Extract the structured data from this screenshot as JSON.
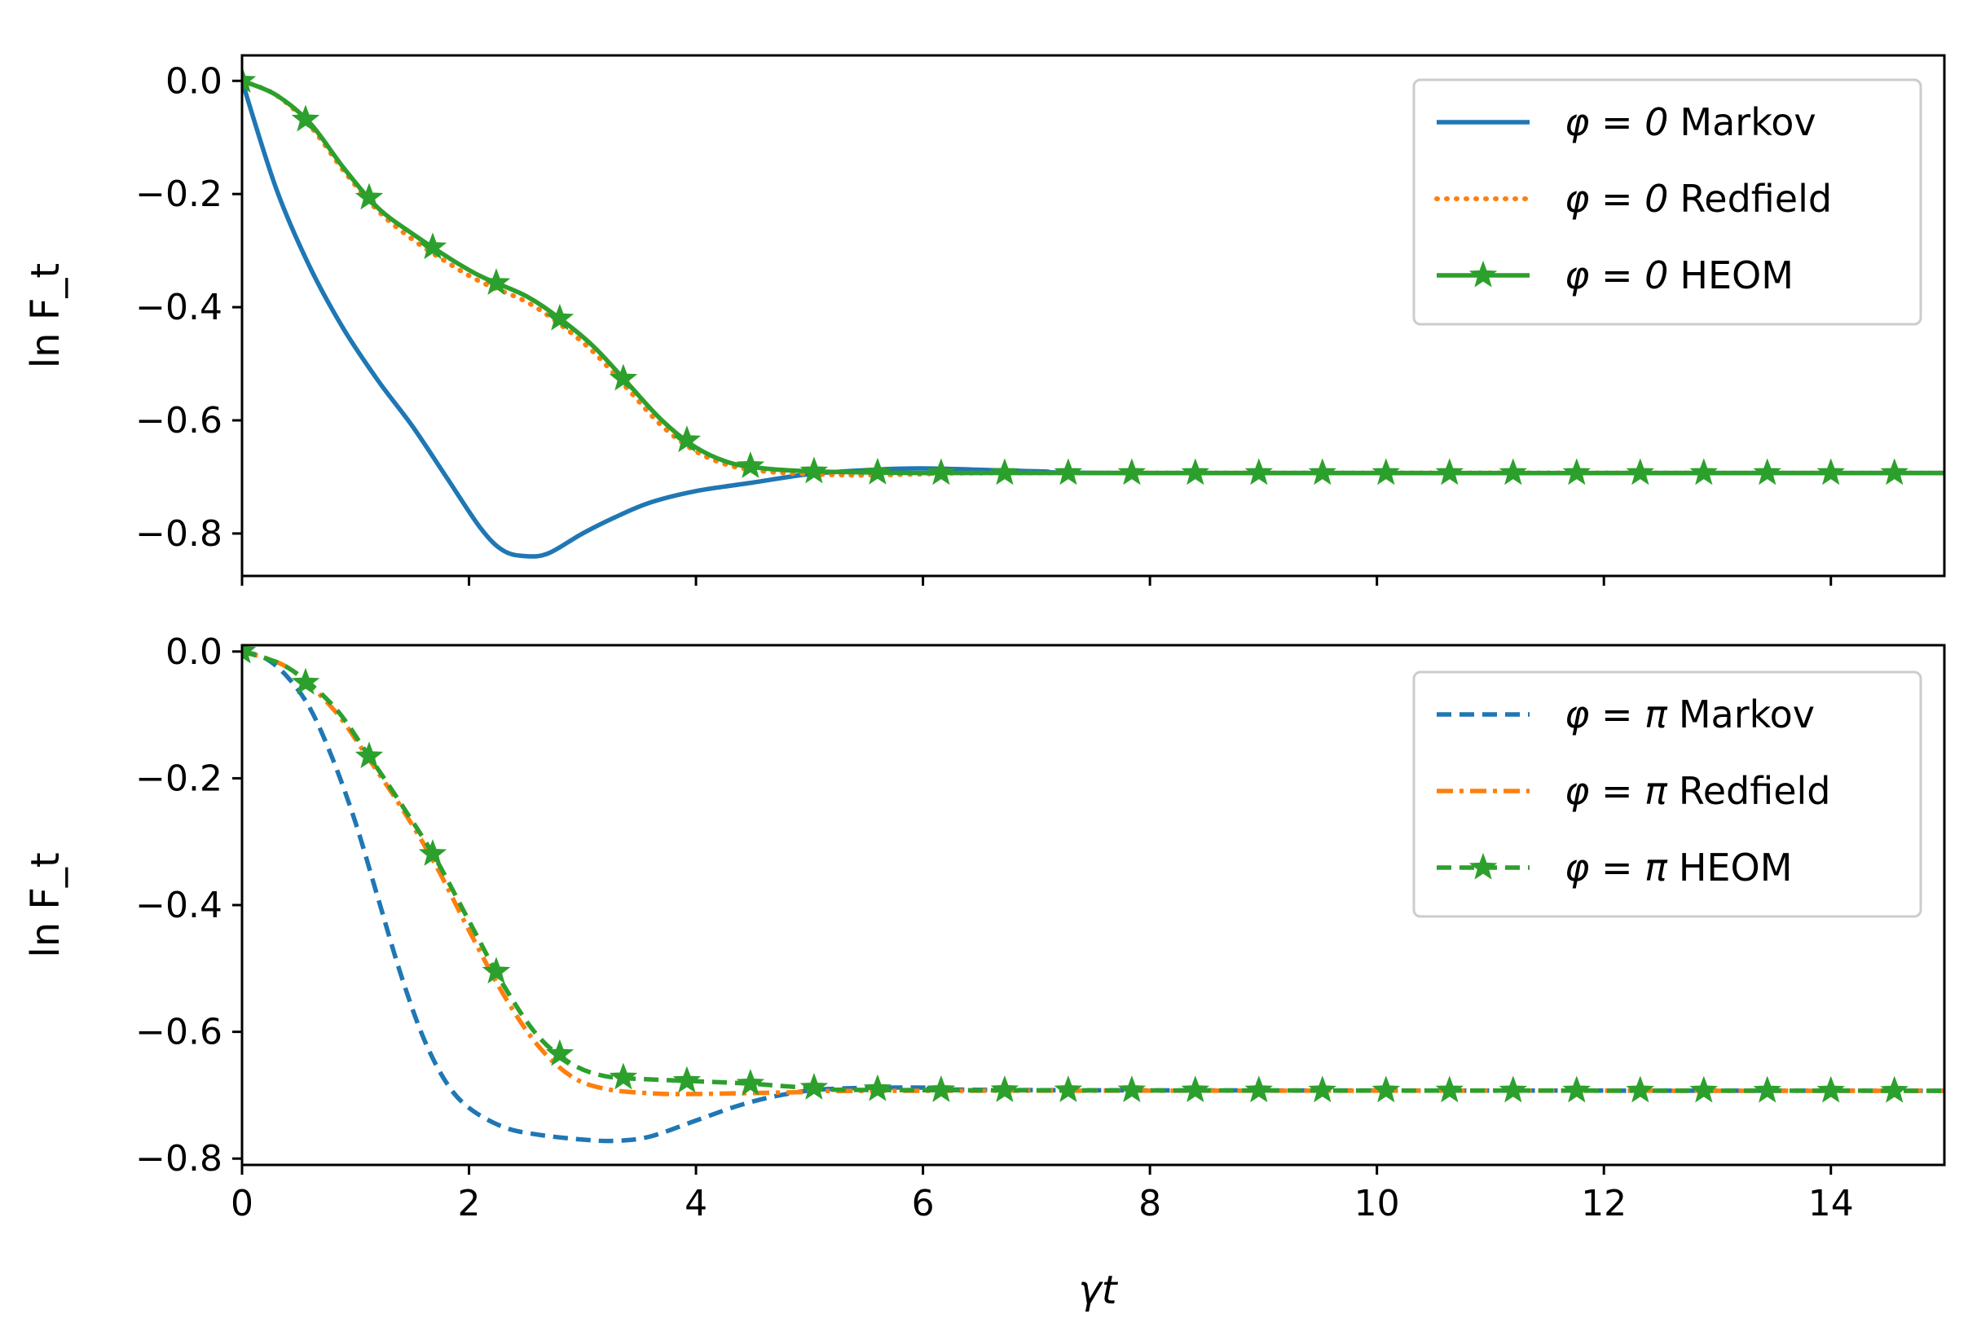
{
  "figure": {
    "xlabel": "γt",
    "colors": {
      "blue": "#1f77b4",
      "orange": "#ff7f0e",
      "green": "#2ca02c",
      "legend_edge": "#cccccc"
    }
  },
  "chart_data": [
    {
      "type": "line",
      "ylabel": "ln F_t",
      "xlim": [
        0,
        15
      ],
      "ylim": [
        -0.875,
        0.045
      ],
      "yticks": [
        0.0,
        -0.2,
        -0.4,
        -0.6,
        -0.8
      ],
      "ytick_labels": [
        "0.0",
        "−0.2",
        "−0.4",
        "−0.6",
        "−0.8"
      ],
      "xticks": [
        0,
        2,
        4,
        6,
        8,
        10,
        12,
        14
      ],
      "xtick_labels_shown": false,
      "grid": false,
      "legend_position": "upper-right",
      "series": [
        {
          "name": "φ = 0 Markov",
          "label_prefix": "φ = 0",
          "label_suffix": "Markov",
          "color": "#1f77b4",
          "style": "solid",
          "marker": "none",
          "x": [
            0,
            0.3,
            0.6,
            0.9,
            1.2,
            1.5,
            1.8,
            2.1,
            2.3,
            2.5,
            2.7,
            3.0,
            3.3,
            3.6,
            4.0,
            4.5,
            5.0,
            5.5,
            6.0,
            7.0,
            8.0,
            15.0
          ],
          "y": [
            0,
            -0.19,
            -0.33,
            -0.44,
            -0.53,
            -0.61,
            -0.7,
            -0.79,
            -0.83,
            -0.84,
            -0.835,
            -0.8,
            -0.77,
            -0.745,
            -0.725,
            -0.71,
            -0.695,
            -0.688,
            -0.685,
            -0.69,
            -0.693,
            -0.693
          ]
        },
        {
          "name": "φ = 0 Redfield",
          "label_prefix": "φ = 0",
          "label_suffix": "Redfield",
          "color": "#ff7f0e",
          "style": "dotted",
          "marker": "none",
          "x": [
            0,
            0.3,
            0.6,
            0.9,
            1.2,
            1.5,
            1.8,
            2.1,
            2.5,
            2.8,
            3.1,
            3.4,
            3.7,
            4.0,
            4.3,
            4.6,
            5.0,
            5.5,
            6.0,
            7.0,
            15.0
          ],
          "y": [
            0,
            -0.025,
            -0.08,
            -0.16,
            -0.23,
            -0.28,
            -0.32,
            -0.355,
            -0.39,
            -0.43,
            -0.48,
            -0.545,
            -0.61,
            -0.655,
            -0.68,
            -0.69,
            -0.695,
            -0.697,
            -0.695,
            -0.693,
            -0.693
          ]
        },
        {
          "name": "φ = 0 HEOM",
          "label_prefix": "φ = 0",
          "label_suffix": "HEOM",
          "color": "#2ca02c",
          "style": "solid",
          "marker": "star",
          "x": [
            0,
            0.3,
            0.6,
            0.9,
            1.2,
            1.5,
            1.8,
            2.1,
            2.5,
            2.8,
            3.1,
            3.4,
            3.7,
            4.0,
            4.3,
            4.6,
            5.0,
            5.5,
            6.0,
            7.0,
            15.0
          ],
          "y": [
            0,
            -0.025,
            -0.075,
            -0.155,
            -0.225,
            -0.27,
            -0.31,
            -0.345,
            -0.38,
            -0.42,
            -0.47,
            -0.535,
            -0.6,
            -0.648,
            -0.675,
            -0.685,
            -0.69,
            -0.692,
            -0.693,
            -0.693,
            -0.693
          ],
          "marker_x": [
            0,
            0.56,
            1.12,
            1.68,
            2.24,
            2.8,
            3.36,
            3.92,
            4.48,
            5.04,
            5.6,
            6.16,
            6.72,
            7.28,
            7.84,
            8.4,
            8.96,
            9.52,
            10.08,
            10.64,
            11.2,
            11.76,
            12.32,
            12.88,
            13.44,
            14.0,
            14.56
          ]
        }
      ]
    },
    {
      "type": "line",
      "ylabel": "ln F_t",
      "xlabel": "γt",
      "xlim": [
        0,
        15
      ],
      "ylim": [
        -0.81,
        0.01
      ],
      "yticks": [
        0.0,
        -0.2,
        -0.4,
        -0.6,
        -0.8
      ],
      "ytick_labels": [
        "0.0",
        "−0.2",
        "−0.4",
        "−0.6",
        "−0.8"
      ],
      "xticks": [
        0,
        2,
        4,
        6,
        8,
        10,
        12,
        14
      ],
      "xtick_labels": [
        "0",
        "2",
        "4",
        "6",
        "8",
        "10",
        "12",
        "14"
      ],
      "grid": false,
      "legend_position": "upper-right",
      "series": [
        {
          "name": "φ = π Markov",
          "label_prefix": "φ = π",
          "label_suffix": "Markov",
          "color": "#1f77b4",
          "style": "dashed",
          "marker": "none",
          "x": [
            0,
            0.2,
            0.4,
            0.6,
            0.8,
            1.0,
            1.2,
            1.4,
            1.6,
            1.8,
            2.0,
            2.3,
            2.6,
            3.0,
            3.3,
            3.6,
            4.0,
            4.4,
            4.8,
            5.2,
            6.0,
            7.0,
            15.0
          ],
          "y": [
            0,
            -0.01,
            -0.04,
            -0.09,
            -0.17,
            -0.27,
            -0.39,
            -0.51,
            -0.61,
            -0.68,
            -0.72,
            -0.75,
            -0.762,
            -0.77,
            -0.772,
            -0.765,
            -0.74,
            -0.715,
            -0.698,
            -0.69,
            -0.688,
            -0.692,
            -0.693
          ]
        },
        {
          "name": "φ = π Redfield",
          "label_prefix": "φ = π",
          "label_suffix": "Redfield",
          "color": "#ff7f0e",
          "style": "dashdot",
          "marker": "none",
          "x": [
            0,
            0.4,
            0.8,
            1.1,
            1.4,
            1.7,
            2.0,
            2.3,
            2.6,
            2.9,
            3.2,
            3.6,
            4.0,
            5.0,
            6.0,
            15.0
          ],
          "y": [
            0,
            -0.025,
            -0.09,
            -0.165,
            -0.245,
            -0.335,
            -0.44,
            -0.54,
            -0.62,
            -0.67,
            -0.69,
            -0.697,
            -0.698,
            -0.695,
            -0.693,
            -0.693
          ]
        },
        {
          "name": "φ = π HEOM",
          "label_prefix": "φ = π",
          "label_suffix": "HEOM",
          "color": "#2ca02c",
          "style": "dashed",
          "marker": "star",
          "x": [
            0,
            0.4,
            0.8,
            1.1,
            1.4,
            1.7,
            2.0,
            2.3,
            2.6,
            2.9,
            3.2,
            3.6,
            4.0,
            4.5,
            5.0,
            6.0,
            15.0
          ],
          "y": [
            0,
            -0.025,
            -0.085,
            -0.16,
            -0.24,
            -0.325,
            -0.425,
            -0.525,
            -0.605,
            -0.65,
            -0.67,
            -0.675,
            -0.678,
            -0.682,
            -0.688,
            -0.692,
            -0.693
          ],
          "marker_x": [
            0,
            0.56,
            1.12,
            1.68,
            2.24,
            2.8,
            3.36,
            3.92,
            4.48,
            5.04,
            5.6,
            6.16,
            6.72,
            7.28,
            7.84,
            8.4,
            8.96,
            9.52,
            10.08,
            10.64,
            11.2,
            11.76,
            12.32,
            12.88,
            13.44,
            14.0,
            14.56
          ]
        }
      ]
    }
  ]
}
